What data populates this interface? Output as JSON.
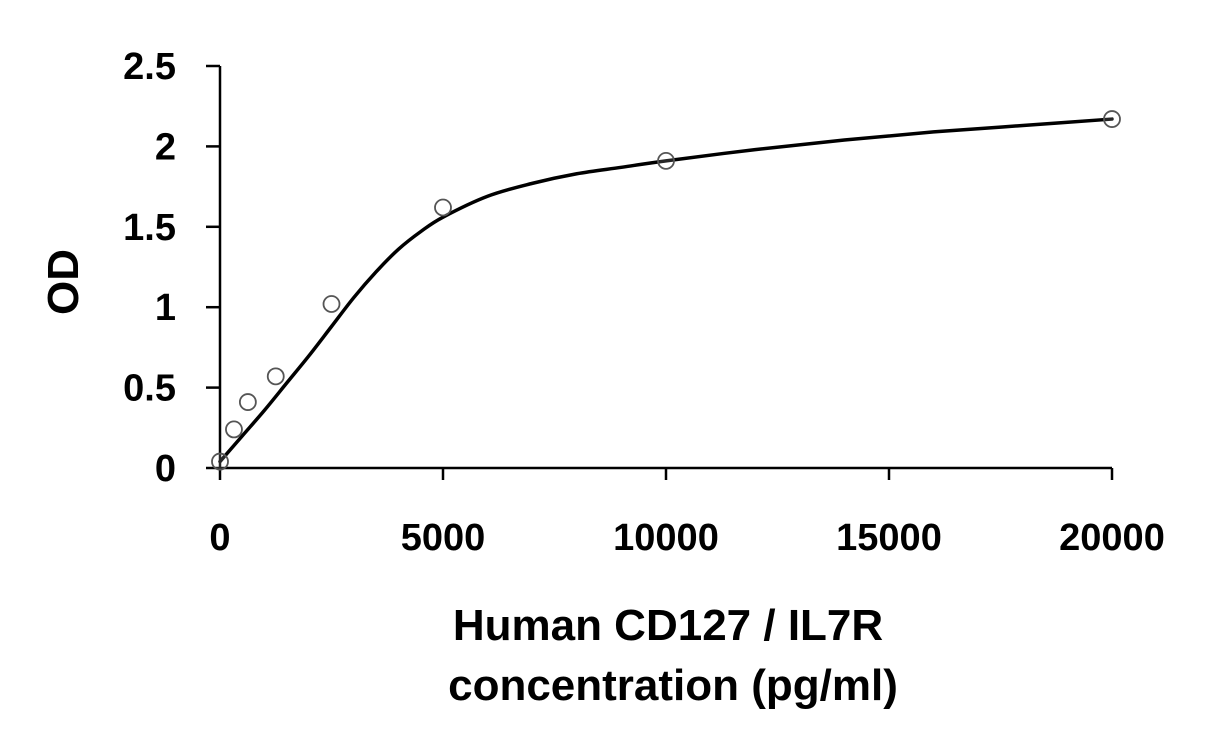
{
  "chart_data": {
    "type": "scatter",
    "title": "",
    "xlabel_lines": [
      "Human CD127 / IL7R",
      "concentration (pg/ml)"
    ],
    "ylabel": "OD",
    "xlim": [
      0,
      20000
    ],
    "ylim": [
      0,
      2.5
    ],
    "x_ticks": [
      0,
      5000,
      10000,
      15000,
      20000
    ],
    "y_ticks": [
      0,
      0.5,
      1,
      1.5,
      2,
      2.5
    ],
    "x_tick_labels": [
      "0",
      "5000",
      "10000",
      "15000",
      "20000"
    ],
    "y_tick_labels": [
      "0",
      "0.5",
      "1",
      "1.5",
      "2",
      "2.5"
    ],
    "grid": false,
    "legend": "none",
    "series": [
      {
        "kind": "points",
        "marker": "open-circle",
        "x": [
          0,
          313,
          625,
          1250,
          2500,
          5000,
          10000,
          20000
        ],
        "y": [
          0.04,
          0.24,
          0.41,
          0.57,
          1.02,
          1.62,
          1.91,
          2.17
        ]
      },
      {
        "kind": "fit-curve",
        "x": [
          0,
          500,
          1000,
          1500,
          2000,
          2500,
          3000,
          3500,
          4000,
          4500,
          5000,
          6000,
          7000,
          8000,
          9000,
          10000,
          12000,
          14000,
          16000,
          18000,
          20000
        ],
        "y": [
          0.04,
          0.2,
          0.36,
          0.53,
          0.7,
          0.88,
          1.06,
          1.22,
          1.36,
          1.47,
          1.56,
          1.69,
          1.77,
          1.83,
          1.87,
          1.91,
          1.98,
          2.04,
          2.09,
          2.13,
          2.17
        ]
      }
    ],
    "colors": {
      "line": "#000000",
      "marker_stroke": "#555555",
      "marker_fill": "#ffffff",
      "axis": "#000000"
    }
  }
}
